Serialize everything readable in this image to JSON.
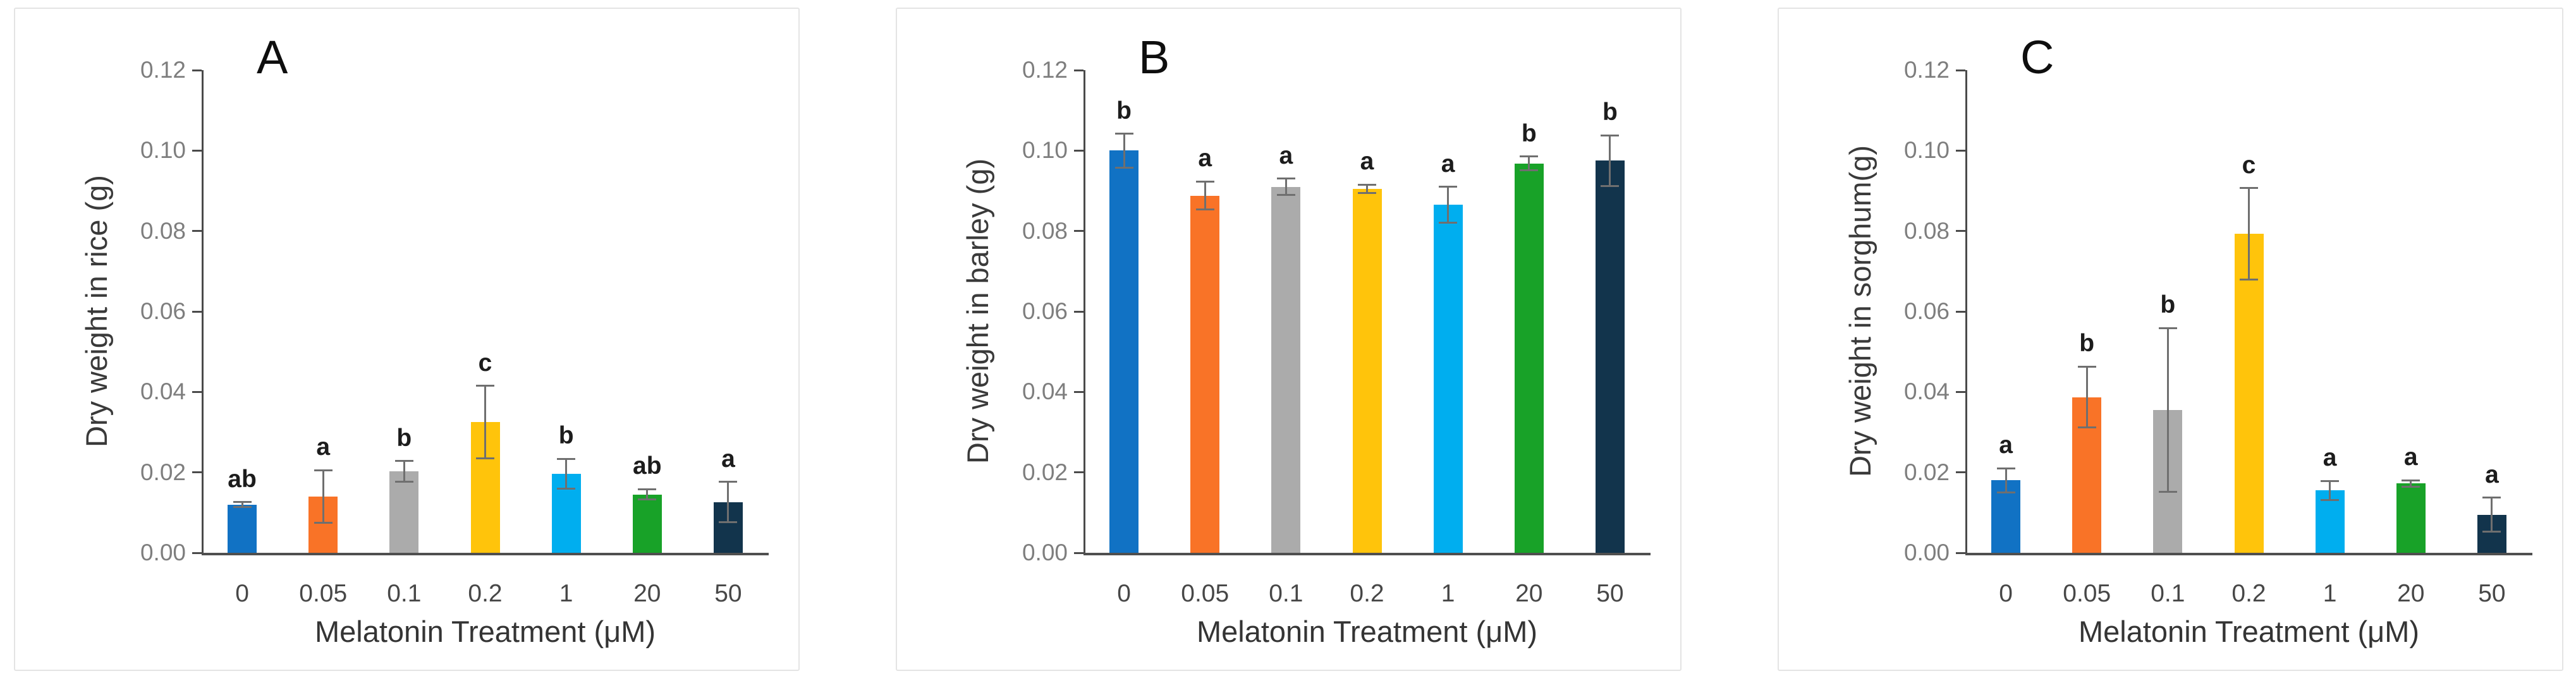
{
  "page": {
    "background_color": "#ffffff",
    "panel_border_color": "#e4e4e4",
    "axis_color": "#4a4a4a",
    "error_bar_color": "#6f6f6f",
    "ytick_label_color": "#7e7e7e",
    "xtick_label_color": "#474747",
    "sig_letter_color": "#1c1c1c"
  },
  "chart_data": [
    {
      "type": "bar",
      "panel_label": "A",
      "ylabel": "Dry weight in rice (g)",
      "xlabel": "Melatonin Treatment (μM)",
      "categories": [
        "0",
        "0.05",
        "0.1",
        "0.2",
        "1",
        "20",
        "50"
      ],
      "values": [
        0.012,
        0.014,
        0.0202,
        0.0325,
        0.0197,
        0.0145,
        0.0126
      ],
      "errors": [
        0.0006,
        0.0065,
        0.0026,
        0.009,
        0.0037,
        0.0013,
        0.005
      ],
      "sig_letters": [
        "ab",
        "a",
        "b",
        "c",
        "b",
        "ab",
        "a"
      ],
      "bar_colors": [
        "#1172C4",
        "#F97327",
        "#ABABAB",
        "#FFC40B",
        "#00AEEF",
        "#18A228",
        "#12344C"
      ],
      "ylim": [
        0,
        0.12
      ],
      "ytick_labels": [
        "0.00",
        "0.02",
        "0.04",
        "0.06",
        "0.08",
        "0.10",
        "0.12"
      ],
      "grid": "off",
      "legend": "none"
    },
    {
      "type": "bar",
      "panel_label": "B",
      "ylabel": "Dry weight in barley (g)",
      "xlabel": "Melatonin Treatment (μM)",
      "categories": [
        "0",
        "0.05",
        "0.1",
        "0.2",
        "1",
        "20",
        "50"
      ],
      "values": [
        0.1,
        0.0888,
        0.091,
        0.0905,
        0.0865,
        0.0968,
        0.0975
      ],
      "errors": [
        0.0042,
        0.0035,
        0.002,
        0.001,
        0.0045,
        0.0017,
        0.0063
      ],
      "sig_letters": [
        "b",
        "a",
        "a",
        "a",
        "a",
        "b",
        "b"
      ],
      "bar_colors": [
        "#1172C4",
        "#F97327",
        "#ABABAB",
        "#FFC40B",
        "#00AEEF",
        "#18A228",
        "#12344C"
      ],
      "ylim": [
        0,
        0.12
      ],
      "ytick_labels": [
        "0.00",
        "0.02",
        "0.04",
        "0.06",
        "0.08",
        "0.10",
        "0.12"
      ],
      "grid": "off",
      "legend": "none"
    },
    {
      "type": "bar",
      "panel_label": "C",
      "ylabel": "Dry weight in sorghum(g)",
      "xlabel": "Melatonin Treatment (μM)",
      "categories": [
        "0",
        "0.05",
        "0.1",
        "0.2",
        "1",
        "20",
        "50"
      ],
      "values": [
        0.018,
        0.0387,
        0.0355,
        0.0793,
        0.0155,
        0.0172,
        0.0095
      ],
      "errors": [
        0.003,
        0.0076,
        0.0204,
        0.0114,
        0.0024,
        0.0008,
        0.0042
      ],
      "sig_letters": [
        "a",
        "b",
        "b",
        "c",
        "a",
        "a",
        "a"
      ],
      "bar_colors": [
        "#1172C4",
        "#F97327",
        "#ABABAB",
        "#FFC40B",
        "#00AEEF",
        "#18A228",
        "#12344C"
      ],
      "ylim": [
        0,
        0.12
      ],
      "ytick_labels": [
        "0.00",
        "0.02",
        "0.04",
        "0.06",
        "0.08",
        "0.10",
        "0.12"
      ],
      "grid": "off",
      "legend": "none"
    }
  ]
}
